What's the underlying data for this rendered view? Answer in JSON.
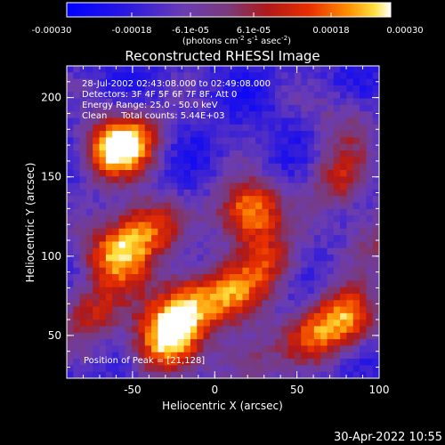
{
  "colorbar": {
    "tick_labels": [
      "-0.00030",
      "-0.00018",
      "-6.1e-05",
      "6.1e-05",
      "0.00018",
      "0.00030"
    ],
    "units_prefix": "(photons cm",
    "units_exp1": "-2",
    "units_mid": " s",
    "units_exp2": "-1",
    "units_mid2": " asec",
    "units_exp3": "-2",
    "units_suffix": ")"
  },
  "chart_data": {
    "type": "heatmap",
    "title": "Reconstructed RHESSI Image",
    "xlabel": "Heliocentric X (arcsec)",
    "ylabel": "Heliocentric Y (arcsec)",
    "xlim": [
      -90,
      100
    ],
    "ylim": [
      23,
      220
    ],
    "xticks": [
      -50,
      0,
      50,
      100
    ],
    "yticks": [
      50,
      100,
      150,
      200
    ],
    "color_range": [
      -0.0003,
      0.0003
    ],
    "annotations": [
      "28-Jul-2002 02:43:08.000 to 02:49:08.000",
      "Detectors: 3F 4F 5F 6F 7F 8F, Att 0",
      "Energy Range: 25.0 - 50.0 keV",
      "Clean     Total counts: 5.44E+03"
    ],
    "peak_label": "Position of Peak = [21,128]",
    "peak": [
      21,
      128
    ],
    "hotspots": [
      {
        "x": 21,
        "y": 128,
        "level": 1.0
      },
      {
        "x": -60,
        "y": 100,
        "level": 0.85
      },
      {
        "x": -42,
        "y": 118,
        "level": 0.8
      },
      {
        "x": -65,
        "y": 165,
        "level": 0.75
      },
      {
        "x": -50,
        "y": 175,
        "level": 0.7
      },
      {
        "x": -15,
        "y": 72,
        "level": 0.75
      },
      {
        "x": -28,
        "y": 55,
        "level": 0.7
      },
      {
        "x": 10,
        "y": 75,
        "level": 0.6
      },
      {
        "x": 32,
        "y": 95,
        "level": 0.6
      },
      {
        "x": 75,
        "y": 148,
        "level": 0.55
      },
      {
        "x": 80,
        "y": 60,
        "level": 0.8
      },
      {
        "x": 60,
        "y": 50,
        "level": 0.55
      },
      {
        "x": 95,
        "y": 110,
        "level": 0.45
      },
      {
        "x": -35,
        "y": 40,
        "level": 0.55
      },
      {
        "x": 20,
        "y": 35,
        "level": 0.5
      },
      {
        "x": 80,
        "y": 185,
        "level": 0.35
      },
      {
        "x": -75,
        "y": 65,
        "level": 0.6
      }
    ]
  },
  "timestamp": "30-Apr-2022 10:55"
}
